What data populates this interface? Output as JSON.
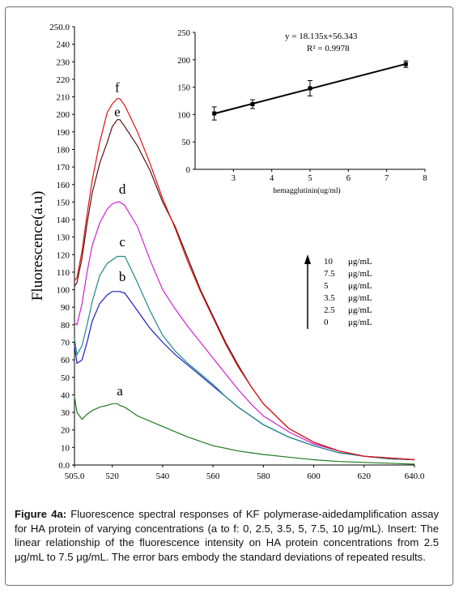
{
  "caption": {
    "label": "Figure 4a:",
    "text": " Fluorescence spectral responses of KF polymerase-aidedamplification assay for HA protein of varying concentrations (a to f: 0, 2.5, 3.5, 5, 7.5, 10 μg/mL). Insert: The linear relationship of the fluorescence intensity on HA protein concentrations from 2.5 μg/mL to 7.5 μg/mL. The error bars embody the standard deviations of repeated results."
  },
  "chart_data": [
    {
      "type": "line",
      "ylabel": "Fluorescence(a.u)",
      "xlabel": "",
      "xlim": [
        505,
        640
      ],
      "ylim": [
        0,
        250
      ],
      "x_ticks": [
        "505.0",
        "520",
        "540",
        "560",
        "580",
        "600",
        "620",
        "640.0"
      ],
      "x_tick_values": [
        505,
        520,
        540,
        560,
        580,
        600,
        620,
        640
      ],
      "y_ticks": [
        "0.0",
        "10",
        "20",
        "30",
        "40",
        "50",
        "60",
        "70",
        "80",
        "90",
        "100",
        "110",
        "120",
        "130",
        "140",
        "150",
        "160",
        "170",
        "180",
        "190",
        "200",
        "210",
        "220",
        "230",
        "240",
        "250.0"
      ],
      "y_tick_values": [
        0,
        10,
        20,
        30,
        40,
        50,
        60,
        70,
        80,
        90,
        100,
        110,
        120,
        130,
        140,
        150,
        160,
        170,
        180,
        190,
        200,
        210,
        220,
        230,
        240,
        250
      ],
      "x": [
        505,
        506,
        508,
        510,
        512,
        515,
        518,
        520,
        522,
        523,
        525,
        530,
        535,
        540,
        545,
        550,
        555,
        560,
        565,
        570,
        575,
        580,
        590,
        600,
        610,
        620,
        630,
        640
      ],
      "series": [
        {
          "name": "a",
          "color": "#1f7a1f",
          "label_x": 523,
          "label_y": 38,
          "values": [
            39,
            30,
            26,
            29,
            31,
            33,
            34,
            35,
            35,
            34,
            33,
            28,
            25,
            22,
            19,
            16,
            13.5,
            11,
            9.5,
            8,
            7,
            6,
            4.5,
            3,
            2,
            1.5,
            1,
            0.5
          ]
        },
        {
          "name": "b",
          "color": "#1c1cc0",
          "label_x": 524,
          "label_y": 103,
          "values": [
            68,
            58,
            60,
            70,
            82,
            92,
            97,
            99,
            99,
            99,
            98,
            88,
            78,
            70,
            63,
            57,
            51,
            45,
            39,
            33,
            28,
            23,
            16,
            11,
            7,
            5,
            3.5,
            3
          ]
        },
        {
          "name": "c",
          "color": "#1f8a84",
          "label_x": 524,
          "label_y": 123,
          "values": [
            72,
            63,
            68,
            80,
            93,
            108,
            115,
            117,
            119,
            119,
            119,
            104,
            88,
            74,
            65,
            58,
            52,
            46,
            39,
            33,
            28,
            23,
            16,
            11,
            7,
            5,
            3.5,
            3
          ]
        },
        {
          "name": "d",
          "color": "#cc22cc",
          "label_x": 524,
          "label_y": 153,
          "values": [
            81,
            80,
            92,
            110,
            125,
            138,
            146,
            149,
            150,
            150,
            148,
            136,
            117,
            100,
            89,
            79,
            70,
            61,
            52,
            43,
            35,
            28,
            19,
            12,
            8,
            5,
            4,
            3
          ]
        },
        {
          "name": "e",
          "color": "#5a1010",
          "label_x": 522,
          "label_y": 197,
          "values": [
            102,
            104,
            118,
            138,
            155,
            172,
            184,
            193,
            197,
            197,
            193,
            182,
            168,
            150,
            136,
            118,
            100,
            85,
            70,
            57,
            45,
            35,
            21,
            13,
            8,
            5,
            4,
            3
          ]
        },
        {
          "name": "f",
          "color": "#dd1111",
          "label_x": 522,
          "label_y": 211,
          "values": [
            105,
            107,
            122,
            143,
            162,
            184,
            201,
            206,
            209,
            209,
            205,
            190,
            172,
            152,
            135,
            116,
            99,
            84,
            69,
            56,
            45,
            35,
            21,
            13,
            8,
            5,
            4,
            3
          ]
        }
      ],
      "legend": {
        "position": "right",
        "entries": [
          "10 μg/mL",
          "7.5 μg/mL",
          "5 μg/mL",
          "3.5 μg/mL",
          "2.5 μg/mL",
          "0 μg/mL"
        ],
        "entry_parts": [
          [
            "10",
            "μg/mL"
          ],
          [
            "7.5",
            "μg/mL"
          ],
          [
            "5",
            "μg/mL"
          ],
          [
            "3.5",
            "μg/mL"
          ],
          [
            "2.5",
            "μg/mL"
          ],
          [
            "0",
            "μg/mL"
          ]
        ]
      }
    },
    {
      "type": "scatter",
      "title": "",
      "xlabel": "hemagglutinin(ug/ml)",
      "ylabel": "",
      "xlim": [
        2,
        8
      ],
      "ylim": [
        0,
        250
      ],
      "x_ticks": [
        "3",
        "4",
        "5",
        "6",
        "7",
        "8"
      ],
      "x_tick_values": [
        3,
        4,
        5,
        6,
        7,
        8
      ],
      "y_ticks": [
        "0",
        "50",
        "100",
        "150",
        "200",
        "250"
      ],
      "y_tick_values": [
        0,
        50,
        100,
        150,
        200,
        250
      ],
      "points": [
        {
          "x": 2.5,
          "y": 102,
          "err": 12
        },
        {
          "x": 3.5,
          "y": 119,
          "err": 8
        },
        {
          "x": 5,
          "y": 148,
          "err": 14
        },
        {
          "x": 7.5,
          "y": 192,
          "err": 6
        }
      ],
      "fit": {
        "slope": 18.135,
        "intercept": 56.343,
        "x_range": [
          2.5,
          7.5
        ]
      },
      "equation": "y = 18.135x+56.343",
      "r_squared": "R² = 0.9978"
    }
  ]
}
